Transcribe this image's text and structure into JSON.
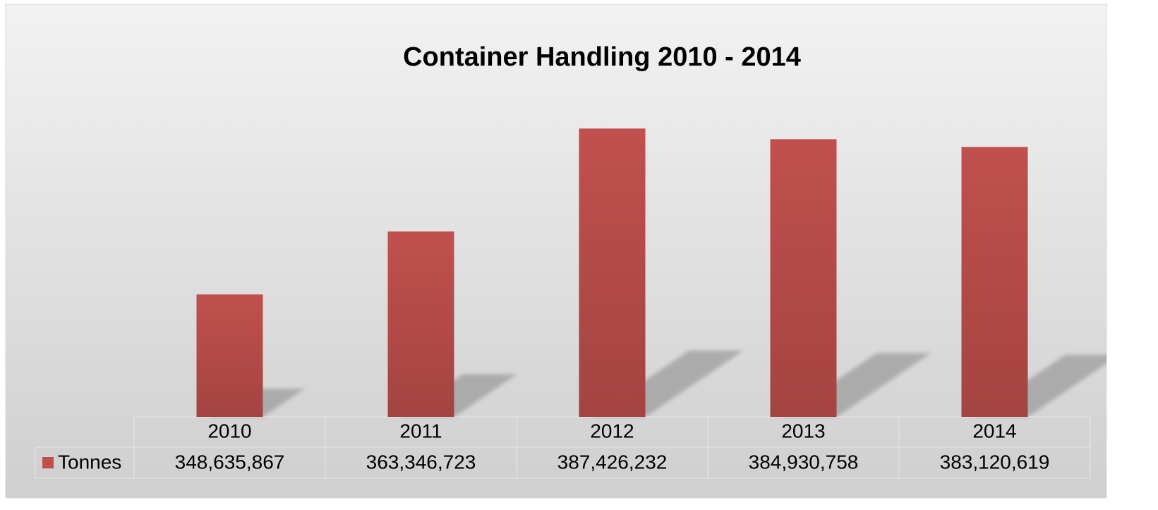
{
  "chart_data": {
    "type": "bar",
    "title": "Container Handling 2010 - 2014",
    "categories": [
      "2010",
      "2011",
      "2012",
      "2013",
      "2014"
    ],
    "series": [
      {
        "name": "Tonnes",
        "color": "#c0504d",
        "values": [
          348635867,
          363346723,
          387426232,
          384930758,
          383120619
        ],
        "value_labels": [
          "348,635,867",
          "363,346,723",
          "387,426,232",
          "384,930,758",
          "383,120,619"
        ]
      }
    ],
    "ylim": [
      320000000,
      400000000
    ]
  }
}
